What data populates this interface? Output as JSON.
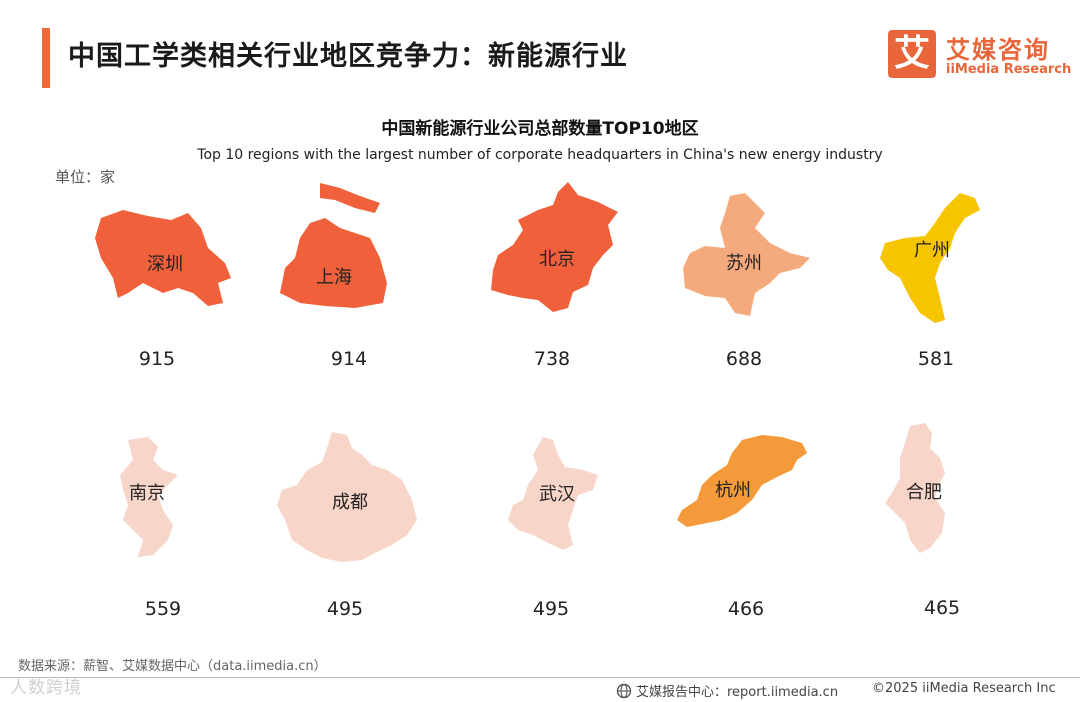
{
  "header": {
    "title": "中国工学类相关行业地区竞争力：新能源行业",
    "logo_cn": "艾媒咨询",
    "logo_en": "iiMedia Research",
    "logo_mark": "艾"
  },
  "unit": "单位：家",
  "source": "数据来源：薪智、艾媒数据中心（data.iimedia.cn）",
  "watermark": "人数跨境",
  "footer": {
    "report": "艾媒报告中心：report.iimedia.cn",
    "copyright": "©2025  iiMedia Research  Inc"
  },
  "colors": {
    "accent": "#ee6a36",
    "high": "#f0603a",
    "mid": "#f5aa7d",
    "yellow": "#f7c500",
    "orange": "#f59a3a",
    "low": "#f7d5c8"
  },
  "chart_data": {
    "type": "bar",
    "title": "中国新能源行业公司总部数量TOP10地区",
    "subtitle": "Top 10 regions with the largest number of corporate headquarters in China's new energy industry",
    "categories": [
      "深圳",
      "上海",
      "北京",
      "苏州",
      "广州",
      "南京",
      "成都",
      "武汉",
      "杭州",
      "合肥"
    ],
    "values": [
      915,
      914,
      738,
      688,
      581,
      559,
      495,
      495,
      466,
      465
    ],
    "colors": [
      "#f0603a",
      "#f0603a",
      "#f0603a",
      "#f5aa7d",
      "#f7c500",
      "#f7d5c8",
      "#f7d5c8",
      "#f7d5c8",
      "#f59a3a",
      "#f7d5c8"
    ]
  }
}
